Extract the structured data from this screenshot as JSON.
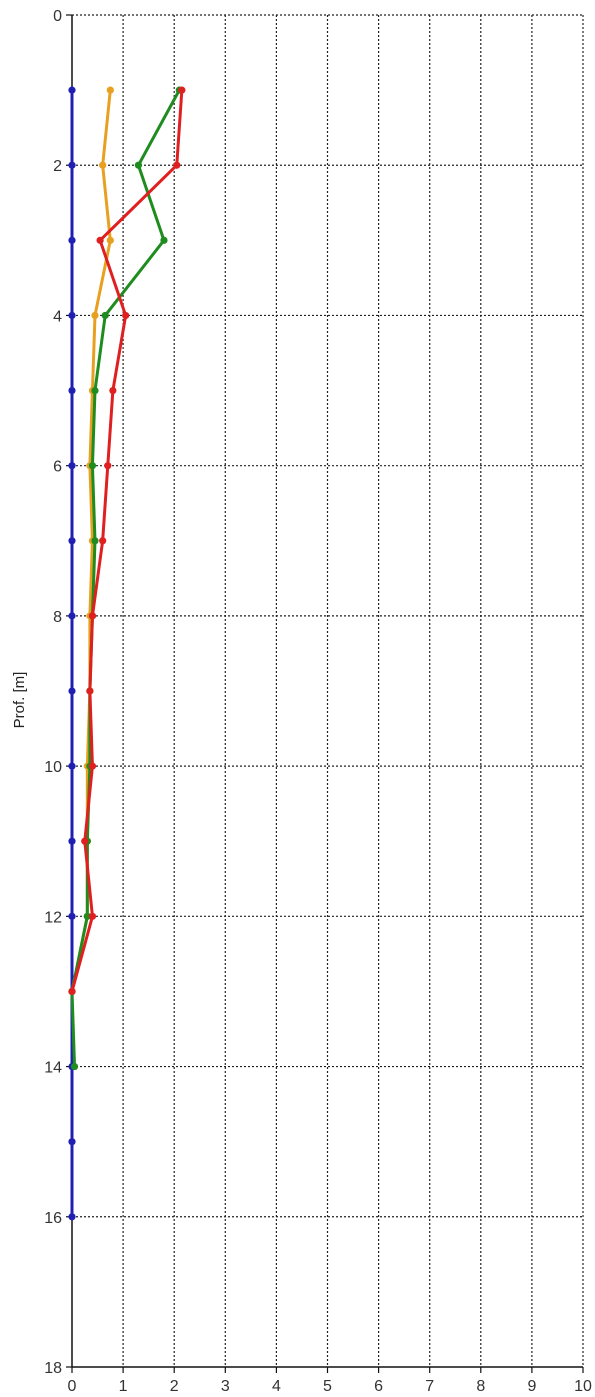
{
  "chart_data": {
    "type": "line",
    "orientation": "depth-profile",
    "title": "",
    "xlabel": "",
    "ylabel": "Prof. [m]",
    "xlim": [
      0,
      10
    ],
    "ylim": [
      0,
      18
    ],
    "y_inverted": true,
    "x_ticks": [
      0,
      1,
      2,
      3,
      4,
      5,
      6,
      7,
      8,
      9,
      10
    ],
    "y_ticks": [
      0,
      2,
      4,
      6,
      8,
      10,
      12,
      14,
      16,
      18
    ],
    "grid": true,
    "grid_style": "dotted",
    "series": [
      {
        "color": "#1f1fb4",
        "depths": [
          1,
          2,
          3,
          4,
          5,
          6,
          7,
          8,
          9,
          10,
          11,
          12,
          13,
          14,
          15,
          16
        ],
        "values": [
          0,
          0,
          0,
          0,
          0,
          0,
          0,
          0,
          0,
          0,
          0,
          0,
          0,
          0,
          0,
          0
        ]
      },
      {
        "color": "#e8a020",
        "depths": [
          1,
          2,
          3,
          4,
          5,
          6,
          7,
          8,
          9,
          10,
          11,
          12,
          13
        ],
        "values": [
          0.75,
          0.6,
          0.75,
          0.45,
          0.4,
          0.35,
          0.4,
          0.35,
          0.35,
          0.3,
          0.3,
          0.3,
          0.0
        ]
      },
      {
        "color": "#1e8c1e",
        "depths": [
          1,
          2,
          3,
          4,
          5,
          6,
          7,
          8,
          9,
          10,
          11,
          12,
          13,
          14
        ],
        "values": [
          2.1,
          1.3,
          1.8,
          0.65,
          0.45,
          0.4,
          0.45,
          0.4,
          0.35,
          0.35,
          0.3,
          0.3,
          0.0,
          0.05
        ]
      },
      {
        "color": "#e02020",
        "depths": [
          1,
          2,
          3,
          4,
          5,
          6,
          7,
          8,
          9,
          10,
          11,
          12,
          13
        ],
        "values": [
          2.15,
          2.05,
          0.55,
          1.05,
          0.8,
          0.7,
          0.6,
          0.4,
          0.35,
          0.4,
          0.25,
          0.4,
          0.0
        ]
      }
    ]
  }
}
